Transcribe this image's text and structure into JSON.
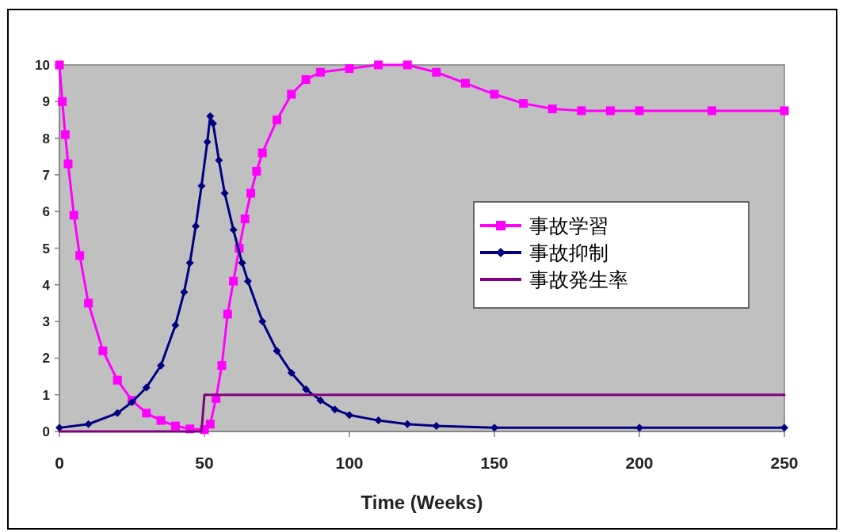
{
  "chart_data": {
    "type": "line",
    "xlabel": "Time (Weeks)",
    "xlim": [
      0,
      250
    ],
    "xticks": [
      0,
      50,
      100,
      150,
      200,
      250
    ],
    "ylim": [
      0,
      10
    ],
    "yticks": [
      0,
      1,
      2,
      3,
      4,
      5,
      6,
      7,
      8,
      9,
      10
    ],
    "grid": false,
    "legend": "right",
    "series": [
      {
        "name": "事故学習",
        "color": "#ff00ff",
        "marker": "square",
        "x": [
          0,
          1,
          2,
          3,
          5,
          7,
          10,
          15,
          20,
          25,
          30,
          35,
          40,
          45,
          50,
          52,
          54,
          56,
          58,
          60,
          62,
          64,
          66,
          68,
          70,
          75,
          80,
          85,
          90,
          100,
          110,
          120,
          130,
          140,
          150,
          160,
          170,
          180,
          190,
          200,
          225,
          250
        ],
        "values": [
          10,
          9,
          8.1,
          7.3,
          5.9,
          4.8,
          3.5,
          2.2,
          1.4,
          0.85,
          0.5,
          0.3,
          0.15,
          0.07,
          0.05,
          0.2,
          0.9,
          1.8,
          3.2,
          4.1,
          5.0,
          5.8,
          6.5,
          7.1,
          7.6,
          8.5,
          9.2,
          9.6,
          9.8,
          9.9,
          10,
          10,
          9.8,
          9.5,
          9.2,
          8.95,
          8.8,
          8.75,
          8.75,
          8.75,
          8.75,
          8.75
        ]
      },
      {
        "name": "事故抑制",
        "color": "#000080",
        "marker": "diamond",
        "x": [
          0,
          10,
          20,
          25,
          30,
          35,
          40,
          43,
          45,
          47,
          49,
          51,
          52,
          53,
          55,
          57,
          60,
          63,
          65,
          70,
          75,
          80,
          85,
          90,
          95,
          100,
          110,
          120,
          130,
          150,
          200,
          250
        ],
        "values": [
          0.1,
          0.2,
          0.5,
          0.8,
          1.2,
          1.8,
          2.9,
          3.8,
          4.6,
          5.6,
          6.7,
          7.9,
          8.6,
          8.4,
          7.4,
          6.5,
          5.5,
          4.6,
          4.1,
          3.0,
          2.2,
          1.6,
          1.15,
          0.85,
          0.6,
          0.45,
          0.3,
          0.2,
          0.15,
          0.1,
          0.1,
          0.1
        ]
      },
      {
        "name": "事故発生率",
        "color": "#800080",
        "marker": "none",
        "x": [
          0,
          49,
          50,
          250
        ],
        "values": [
          0,
          0,
          1,
          1
        ]
      }
    ]
  }
}
